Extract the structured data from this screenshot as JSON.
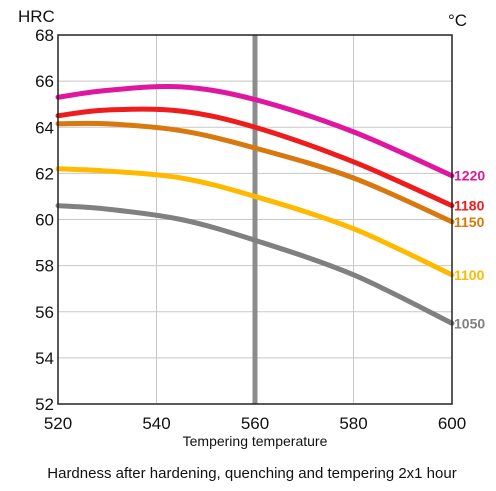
{
  "chart_data": {
    "type": "line",
    "y_unit_label": "HRC",
    "x_unit_label": "°C",
    "xlabel": "Tempering temperature",
    "caption": "Hardness after hardening, quenching and tempering  2x1 hour",
    "xlim": [
      520,
      600
    ],
    "ylim": [
      52,
      68
    ],
    "x_ticks": [
      520,
      540,
      560,
      580,
      600
    ],
    "y_ticks": [
      52,
      54,
      56,
      58,
      60,
      62,
      64,
      66,
      68
    ],
    "grid": true,
    "marker_x": 560,
    "series": [
      {
        "name": "1220",
        "color": "#e0179e",
        "x": [
          520,
          530,
          545,
          560,
          580,
          600
        ],
        "y": [
          65.3,
          65.6,
          65.75,
          65.2,
          63.8,
          61.9
        ]
      },
      {
        "name": "1180",
        "color": "#ee1c1c",
        "x": [
          520,
          530,
          545,
          560,
          580,
          600
        ],
        "y": [
          64.5,
          64.75,
          64.7,
          64.0,
          62.5,
          60.6
        ]
      },
      {
        "name": "1150",
        "color": "#d9780e",
        "x": [
          520,
          530,
          545,
          560,
          580,
          600
        ],
        "y": [
          64.15,
          64.15,
          63.85,
          63.1,
          61.8,
          59.9
        ]
      },
      {
        "name": "1100",
        "color": "#ffba00",
        "x": [
          520,
          530,
          545,
          560,
          580,
          600
        ],
        "y": [
          62.2,
          62.1,
          61.8,
          61.0,
          59.6,
          57.6
        ]
      },
      {
        "name": "1050",
        "color": "#808080",
        "x": [
          520,
          530,
          545,
          560,
          580,
          600
        ],
        "y": [
          60.6,
          60.45,
          60.0,
          59.1,
          57.6,
          55.5
        ]
      }
    ]
  }
}
